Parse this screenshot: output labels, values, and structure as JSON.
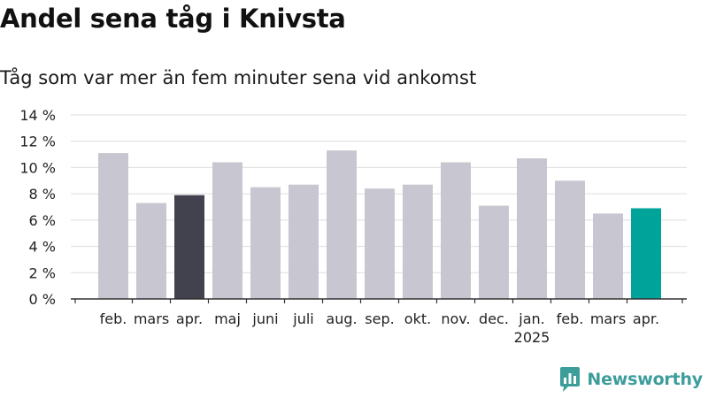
{
  "header": {
    "title": "Andel sena tåg i Knivsta",
    "subtitle": "Tåg som var mer än fem minuter sena vid ankomst"
  },
  "brand": {
    "name": "Newsworthy",
    "icon": "newsworthy-logo-icon",
    "color": "#3d9d9b"
  },
  "chart_data": {
    "type": "bar",
    "categories": [
      "feb.",
      "mars",
      "apr.",
      "maj",
      "juni",
      "juli",
      "aug.",
      "sep.",
      "okt.",
      "nov.",
      "dec.",
      "jan.",
      "feb.",
      "mars",
      "apr."
    ],
    "year_labels": [
      {
        "index": 11,
        "label": "2025"
      }
    ],
    "series": [
      {
        "values": [
          11.1,
          7.3,
          7.9,
          10.4,
          8.5,
          8.7,
          11.3,
          8.4,
          8.7,
          10.4,
          7.1,
          10.7,
          9.0,
          6.5,
          6.9
        ]
      }
    ],
    "ylim": [
      0,
      14
    ],
    "yticks": [
      0,
      2,
      4,
      6,
      8,
      10,
      12,
      14
    ],
    "ytick_labels": [
      "0 %",
      "2 %",
      "4 %",
      "6 %",
      "8 %",
      "10 %",
      "12 %",
      "14 %"
    ],
    "grid": true,
    "colors": {
      "default": "#c8c6d0",
      "highlight_previous_year": "#42414e",
      "highlight_latest": "#00a39a",
      "grid": "#dddddd",
      "axis": "#333333"
    },
    "highlight": {
      "2": "highlight_previous_year",
      "14": "highlight_latest"
    }
  }
}
